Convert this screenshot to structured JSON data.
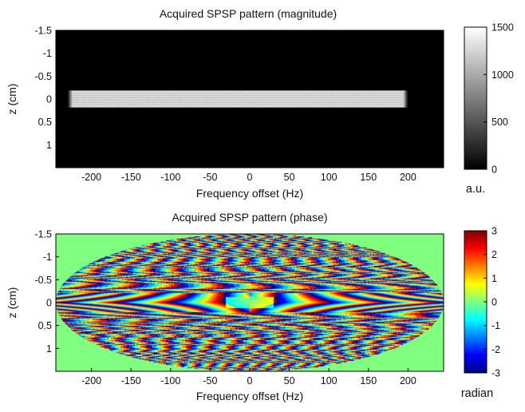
{
  "chart_data": [
    {
      "type": "heatmap",
      "title": "Acquired SPSP pattern (magnitude)",
      "xlabel": "Frequency offset (Hz)",
      "ylabel": "z (cm)",
      "x_ticks": [
        "-200",
        "-150",
        "-100",
        "-50",
        "0",
        "50",
        "100",
        "150",
        "200"
      ],
      "x_tick_values": [
        -200,
        -150,
        -100,
        -50,
        0,
        50,
        100,
        150,
        200
      ],
      "y_ticks": [
        "-1.5",
        "-1",
        "-0.5",
        "0",
        "0.5",
        "1"
      ],
      "y_tick_values": [
        -1.5,
        -1,
        -0.5,
        0,
        0.5,
        1
      ],
      "xlim": [
        -245,
        245
      ],
      "ylim": [
        -1.5,
        1.5
      ],
      "y_reversed": true,
      "colormap": "gray",
      "colorbar": {
        "ticks": [
          "0",
          "500",
          "1000",
          "1500"
        ],
        "tick_values": [
          0,
          500,
          1000,
          1500
        ],
        "range": [
          0,
          1500
        ],
        "label": "a.u."
      },
      "features": {
        "band_x_range": [
          -230,
          200
        ],
        "band_z_range": [
          -0.2,
          0.2
        ],
        "band_level": 1300,
        "background_level": 0
      }
    },
    {
      "type": "heatmap",
      "title": "Acquired SPSP pattern (phase)",
      "xlabel": "Frequency offset (Hz)",
      "ylabel": "z (cm)",
      "x_ticks": [
        "-200",
        "-150",
        "-100",
        "-50",
        "0",
        "50",
        "100",
        "150",
        "200"
      ],
      "x_tick_values": [
        -200,
        -150,
        -100,
        -50,
        0,
        50,
        100,
        150,
        200
      ],
      "y_ticks": [
        "-1.5",
        "-1",
        "-0.5",
        "0",
        "0.5",
        "1"
      ],
      "y_tick_values": [
        -1.5,
        -1,
        -0.5,
        0,
        0.5,
        1
      ],
      "xlim": [
        -245,
        245
      ],
      "ylim": [
        -1.5,
        1.5
      ],
      "y_reversed": true,
      "colormap": "jet",
      "colorbar": {
        "ticks": [
          "3",
          "2",
          "1",
          "0",
          "-1",
          "-2",
          "-3"
        ],
        "tick_values": [
          3,
          2,
          1,
          0,
          -1,
          -2,
          -3
        ],
        "range": [
          -3,
          3
        ],
        "label": "radian"
      },
      "features": {
        "ellipse_x_semi_axis": 245,
        "ellipse_z_semi_axis": 1.5,
        "outside_value": 0
      }
    }
  ]
}
